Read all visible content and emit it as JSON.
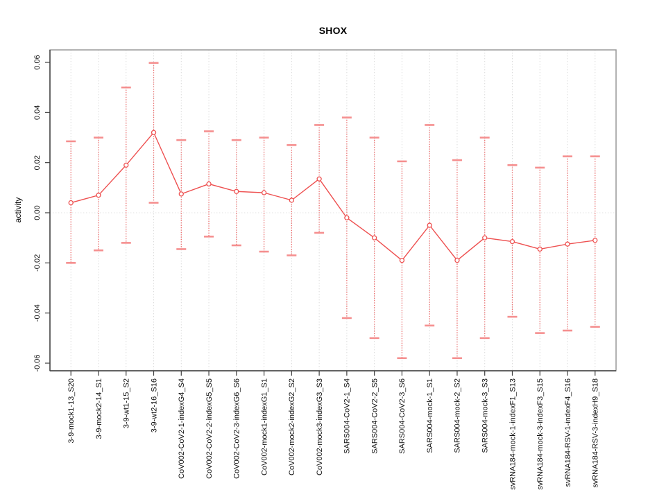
{
  "chart_data": {
    "type": "line",
    "title": "SHOX",
    "xlabel": "",
    "ylabel": "activity",
    "ylim": [
      -0.06,
      0.06
    ],
    "yticks": [
      "-0.06",
      "-0.04",
      "-0.02",
      "0.00",
      "0.02",
      "0.04",
      "0.06"
    ],
    "grid": "vertical dotted gridline per category, dotted horizontal line at y=0",
    "legend": "none",
    "marker": "open-circle",
    "error_bars": true,
    "categories": [
      "3-9-mock1-13_S20",
      "3-9-mock2-14_S1",
      "3-9-wt1-15_S2",
      "3-9-wt2-16_S16",
      "CoV002-CoV2-1-indexG4_S4",
      "CoV002-CoV2-2-indexG5_S5",
      "CoV002-CoV2-3-indexG6_S6",
      "CoV002-mock1-indexG1_S1",
      "CoV002-mock2-indexG2_S2",
      "CoV002-mock3-indexG3_S3",
      "SARS004-CoV2-1_S4",
      "SARS004-CoV2-2_S5",
      "SARS004-CoV2-3_S6",
      "SARS004-mock-1_S1",
      "SARS004-mock-2_S2",
      "SARS004-mock-3_S3",
      "svRNA184-mock-1-indexF1_S13",
      "svRNA184-mock-3-indexF3_S15",
      "svRNA184-RSV-1-indexF4_S16",
      "svRNA184-RSV-3-indexH9_S18"
    ],
    "series": [
      {
        "name": "activity",
        "values": [
          0.004,
          0.007,
          0.019,
          0.032,
          0.0075,
          0.0115,
          0.0085,
          0.008,
          0.005,
          0.0135,
          -0.002,
          -0.01,
          -0.019,
          -0.005,
          -0.019,
          -0.01,
          -0.0115,
          -0.0145,
          -0.0125,
          -0.011
        ],
        "error_low": [
          -0.02,
          -0.015,
          -0.012,
          0.004,
          -0.0145,
          -0.0095,
          -0.013,
          -0.0155,
          -0.017,
          -0.008,
          -0.042,
          -0.05,
          -0.058,
          -0.045,
          -0.058,
          -0.05,
          -0.0415,
          -0.048,
          -0.047,
          -0.0455
        ],
        "error_high": [
          0.0285,
          0.03,
          0.05,
          0.0598,
          0.029,
          0.0325,
          0.029,
          0.03,
          0.027,
          0.035,
          0.038,
          0.03,
          0.0205,
          0.035,
          0.021,
          0.03,
          0.019,
          0.018,
          0.0225,
          0.0225
        ]
      }
    ],
    "colors": {
      "line": "#ee5151",
      "marker_stroke": "#ee5151",
      "marker_fill": "#ffffff",
      "error_stem": "#f05a5a",
      "error_cap": "#f58f8f",
      "gridline": "#d9d9d9",
      "zero_line": "#e2e2e2",
      "box": "#999999",
      "axis": "#3f3f3f",
      "tick_text": "#111111",
      "title_text": "#000000"
    }
  }
}
